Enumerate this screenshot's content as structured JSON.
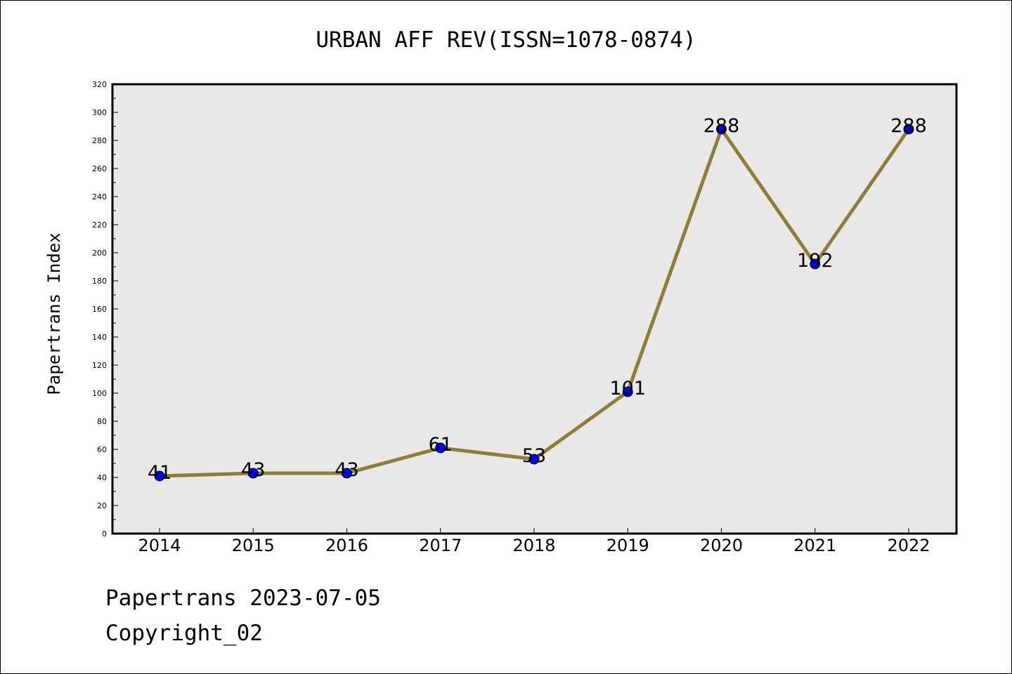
{
  "chart_data": {
    "type": "line",
    "title": "URBAN AFF REV(ISSN=1078-0874)",
    "xlabel": "",
    "ylabel": "Papertrans Index",
    "categories": [
      "2014",
      "2015",
      "2016",
      "2017",
      "2018",
      "2019",
      "2020",
      "2021",
      "2022"
    ],
    "values": [
      41,
      43,
      43,
      61,
      53,
      101,
      288,
      192,
      288
    ],
    "data_labels": [
      "41",
      "43",
      "43",
      "61",
      "53",
      "101",
      "288",
      "192",
      "288"
    ],
    "ylim": [
      0,
      320
    ],
    "ytick_labels": [
      "0",
      "20",
      "40",
      "60",
      "80",
      "100",
      "120",
      "140",
      "160",
      "180",
      "200",
      "220",
      "240",
      "260",
      "280",
      "300",
      "320"
    ],
    "grid": false,
    "legend": "none",
    "colors": {
      "line": "#8f7d3a",
      "marker": "#0000ff",
      "plot_background": "#e8e8e8"
    }
  },
  "footer": {
    "line1": "Papertrans 2023-07-05",
    "line2": "Copyright_02"
  }
}
